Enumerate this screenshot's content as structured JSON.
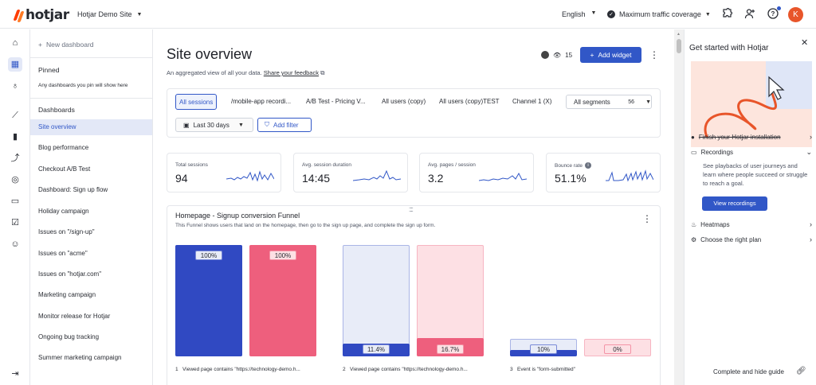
{
  "header": {
    "logo_text": "hotjar",
    "site_name": "Hotjar Demo Site",
    "language": "English",
    "traffic": "Maximum traffic coverage",
    "avatar_initial": "K",
    "icons": [
      "puzzle-icon",
      "add-user-icon",
      "help-icon"
    ]
  },
  "rail": {
    "icons": [
      "home-icon",
      "dashboards-icon",
      "lightbulb-icon",
      "trends-icon",
      "funnels-icon",
      "journeys-icon",
      "heatmaps-icon",
      "recordings-icon",
      "surveys-icon",
      "interviews-icon"
    ],
    "collapse_icon": "collapse-icon"
  },
  "sidebar": {
    "new_dashboard": "New dashboard",
    "pinned_heading": "Pinned",
    "pinned_hint": "Any dashboards you pin will show here",
    "dashboards_heading": "Dashboards",
    "items": [
      {
        "label": "Site overview",
        "active": true
      },
      {
        "label": "Blog performance"
      },
      {
        "label": "Checkout A/B Test"
      },
      {
        "label": "Dashboard: Sign up flow"
      },
      {
        "label": "Holiday campaign"
      },
      {
        "label": "Issues on \"/sign-up\""
      },
      {
        "label": "Issues on \"acme\""
      },
      {
        "label": "Issues on \"hotjar.com\""
      },
      {
        "label": "Marketing campaign"
      },
      {
        "label": "Monitor release for Hotjar"
      },
      {
        "label": "Ongoing bug tracking"
      },
      {
        "label": "Summer marketing campaign"
      }
    ]
  },
  "main": {
    "title": "Site overview",
    "subtitle": "An aggregated view of all your data.",
    "feedback_link": "Share your feedback",
    "viewer_count": "15",
    "add_widget": "Add widget",
    "segments": [
      "All sessions",
      "/mobile-app recordi...",
      "A/B Test - Pricing V...",
      "All users (copy)",
      "All users (copy)TEST",
      "Channel 1 (X)"
    ],
    "all_segments": {
      "label": "All segments",
      "count": "56"
    },
    "date_range": "Last 30 days",
    "add_filter": "Add filter",
    "metrics": [
      {
        "label": "Total sessions",
        "value": "94"
      },
      {
        "label": "Avg. session duration",
        "value": "14:45"
      },
      {
        "label": "Avg. pages / session",
        "value": "3.2"
      },
      {
        "label": "Bounce rate",
        "value": "51.1%"
      }
    ],
    "funnel": {
      "title": "Homepage - Signup conversion Funnel",
      "description": "This Funnel shows users that land on the homepage, then go to the sign up page, and complete the sign up form.",
      "steps": [
        {
          "num": "1",
          "label": "Viewed page contains \"https://technology-demo.h...",
          "blue": "100%",
          "pink": "100%",
          "blue_frac": 1.0,
          "pink_frac": 1.0
        },
        {
          "num": "2",
          "label": "Viewed page contains \"https://technology-demo.h...",
          "blue": "11.4%",
          "pink": "16.7%",
          "blue_frac": 0.114,
          "pink_frac": 0.167
        },
        {
          "num": "3",
          "label": "Event is \"form-submitted\"",
          "blue": "10%",
          "pink": "0%",
          "blue_frac": 0.1,
          "pink_frac": 0.0
        }
      ]
    },
    "colors": {
      "blue": "#3049c2",
      "pink": "#ee5f7d",
      "blue_light": "#e8ecf8",
      "pink_light": "#fde0e4",
      "accent": "#3157c7"
    }
  },
  "panel": {
    "title": "Get started with Hotjar",
    "finish_install": "Finish your Hotjar installation",
    "recordings": "Recordings",
    "recordings_desc": "See playbacks of user journeys and learn where people succeed or struggle to reach a goal.",
    "view_recordings": "View recordings",
    "heatmaps": "Heatmaps",
    "choose_plan": "Choose the right plan",
    "complete_hide": "Complete and hide guide"
  }
}
